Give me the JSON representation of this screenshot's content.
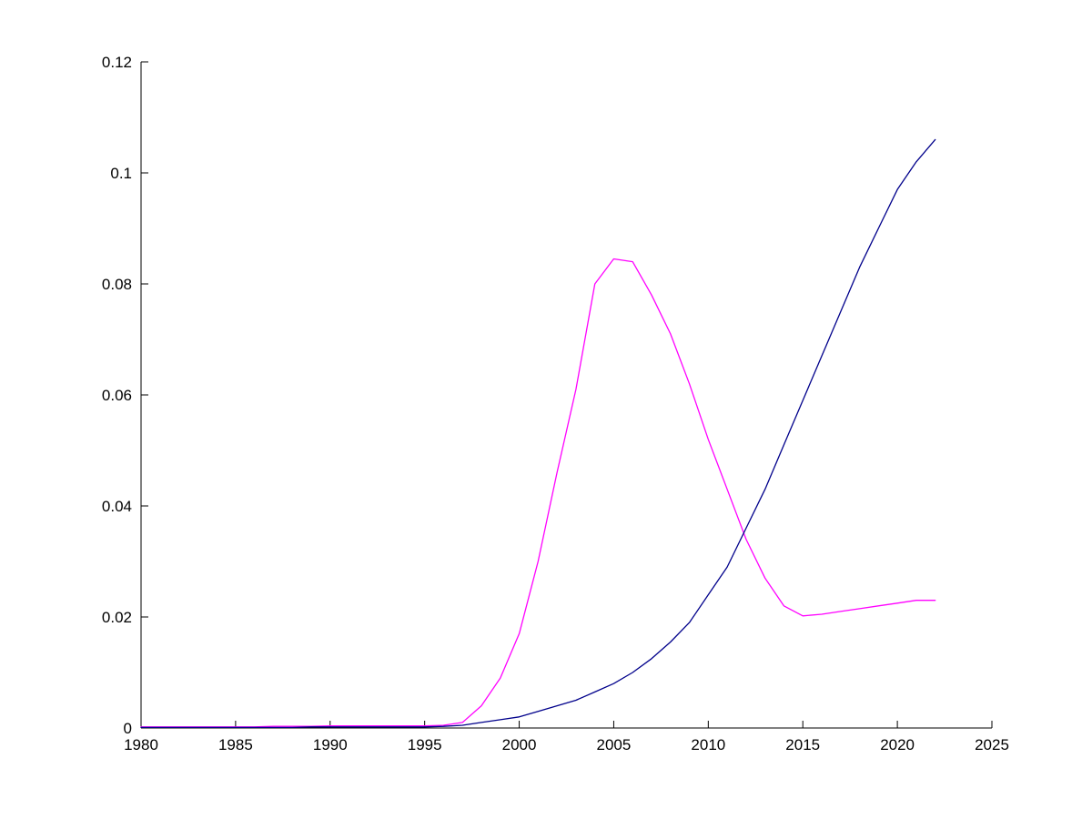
{
  "figure": {
    "background": "#ffffff",
    "axis_color": "#000000"
  },
  "chart_data": {
    "type": "line",
    "title": "",
    "xlabel": "",
    "ylabel": "",
    "xlim": [
      1980,
      2025
    ],
    "ylim": [
      0,
      0.12
    ],
    "xticks": [
      1980,
      1985,
      1990,
      1995,
      2000,
      2005,
      2010,
      2015,
      2020,
      2025
    ],
    "xtick_labels": [
      "1980",
      "1985",
      "1990",
      "1995",
      "2000",
      "2005",
      "2010",
      "2015",
      "2020",
      "2025"
    ],
    "yticks": [
      0,
      0.02,
      0.04,
      0.06,
      0.08,
      0.1,
      0.12
    ],
    "ytick_labels": [
      "0",
      "0.02",
      "0.04",
      "0.06",
      "0.08",
      "0.1",
      "0.12"
    ],
    "grid": false,
    "legend": "none",
    "box": false,
    "x": [
      1980,
      1981,
      1982,
      1983,
      1984,
      1985,
      1986,
      1987,
      1988,
      1989,
      1990,
      1991,
      1992,
      1993,
      1994,
      1995,
      1996,
      1997,
      1998,
      1999,
      2000,
      2001,
      2002,
      2003,
      2004,
      2005,
      2006,
      2007,
      2008,
      2009,
      2010,
      2011,
      2012,
      2013,
      2014,
      2015,
      2016,
      2017,
      2018,
      2019,
      2020,
      2021,
      2022
    ],
    "series": [
      {
        "name": "magenta-series",
        "color": "#ff00ff",
        "values": [
          0.0002,
          0.0002,
          0.0002,
          0.0002,
          0.0002,
          0.0002,
          0.0002,
          0.0003,
          0.0003,
          0.0003,
          0.0004,
          0.0004,
          0.0004,
          0.0004,
          0.0004,
          0.0004,
          0.0005,
          0.001,
          0.004,
          0.009,
          0.017,
          0.03,
          0.046,
          0.061,
          0.08,
          0.0845,
          0.084,
          0.078,
          0.071,
          0.062,
          0.052,
          0.043,
          0.034,
          0.027,
          0.022,
          0.0202,
          0.0205,
          0.021,
          0.0215,
          0.022,
          0.0225,
          0.023,
          0.023
        ]
      },
      {
        "name": "blue-series",
        "color": "#00008b",
        "values": [
          0.0001,
          0.0001,
          0.0001,
          0.0001,
          0.0001,
          0.0001,
          0.0001,
          0.0001,
          0.0001,
          0.0002,
          0.0002,
          0.0002,
          0.0002,
          0.0002,
          0.0002,
          0.0002,
          0.0003,
          0.0005,
          0.001,
          0.0015,
          0.002,
          0.003,
          0.004,
          0.005,
          0.0065,
          0.008,
          0.01,
          0.0125,
          0.0155,
          0.019,
          0.024,
          0.029,
          0.036,
          0.043,
          0.051,
          0.059,
          0.067,
          0.075,
          0.083,
          0.09,
          0.097,
          0.102,
          0.106
        ]
      }
    ]
  }
}
